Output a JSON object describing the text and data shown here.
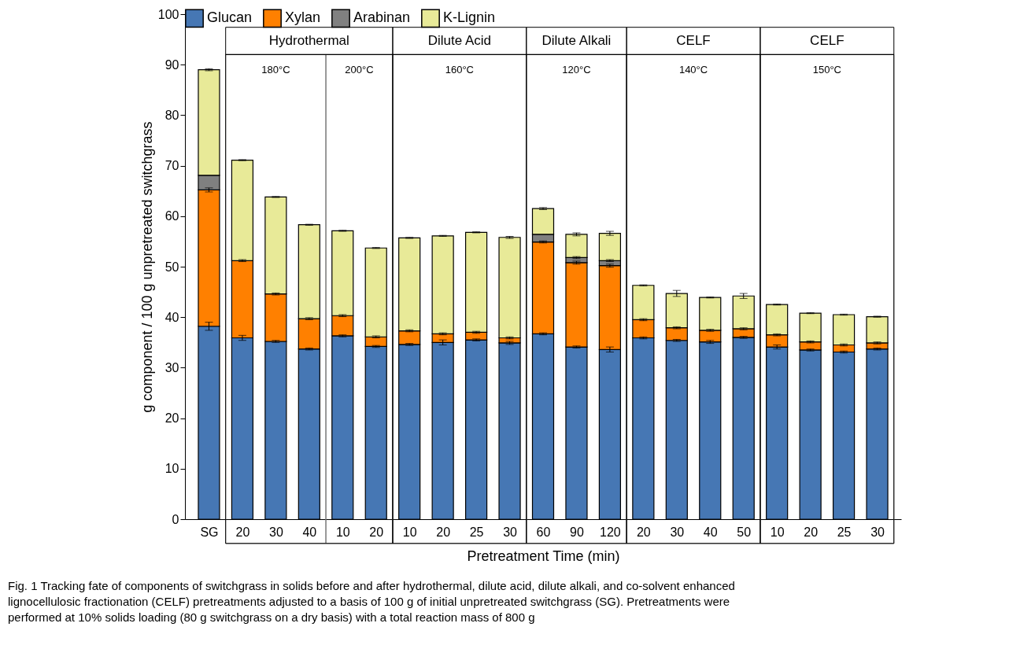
{
  "chart_data": {
    "type": "bar",
    "stacked": true,
    "categories": [
      "SG",
      "20",
      "30",
      "40",
      "10",
      "20",
      "10",
      "20",
      "25",
      "30",
      "60",
      "90",
      "120",
      "20",
      "30",
      "40",
      "50",
      "10",
      "20",
      "25",
      "30"
    ],
    "series": [
      {
        "name": "Glucan",
        "color": "#4677b4",
        "values": [
          38.2,
          35.9,
          35.2,
          33.7,
          36.3,
          34.2,
          34.6,
          35.0,
          35.5,
          34.9,
          36.7,
          34.1,
          33.6,
          35.9,
          35.4,
          35.1,
          36.0,
          34.1,
          33.5,
          33.1,
          33.7
        ],
        "errors": [
          0.8,
          0.5,
          0.2,
          0.2,
          0.2,
          0.2,
          0.2,
          0.5,
          0.2,
          0.3,
          0.2,
          0.2,
          0.5,
          0.2,
          0.2,
          0.3,
          0.2,
          0.4,
          0.2,
          0.2,
          0.2
        ]
      },
      {
        "name": "Xylan",
        "color": "#ff8000",
        "values": [
          27.0,
          15.3,
          9.4,
          6.0,
          4.0,
          1.9,
          2.7,
          1.7,
          1.5,
          1.0,
          18.2,
          16.7,
          16.6,
          3.6,
          2.5,
          2.3,
          1.7,
          2.4,
          1.6,
          1.4,
          1.2
        ],
        "errors": [
          0.4,
          0.2,
          0.2,
          0.2,
          0.2,
          0.2,
          0.2,
          0.2,
          0.2,
          0.2,
          0.2,
          0.3,
          0.3,
          0.2,
          0.2,
          0.2,
          0.2,
          0.2,
          0.2,
          0.2,
          0.2
        ]
      },
      {
        "name": "Arabinan",
        "color": "#808080",
        "values": [
          2.9,
          null,
          null,
          null,
          null,
          null,
          null,
          null,
          null,
          null,
          1.5,
          1.0,
          1.0,
          null,
          null,
          null,
          null,
          null,
          null,
          null,
          null
        ],
        "errors": [
          null,
          null,
          null,
          null,
          null,
          null,
          null,
          null,
          null,
          null,
          null,
          0.2,
          0.2,
          null,
          null,
          null,
          null,
          null,
          null,
          null,
          null
        ]
      },
      {
        "name": "K-Lignin",
        "color": "#e8ea98",
        "values": [
          20.9,
          19.9,
          19.2,
          18.6,
          16.8,
          17.6,
          18.4,
          19.4,
          19.8,
          19.9,
          5.1,
          4.6,
          5.4,
          6.8,
          6.8,
          6.5,
          6.5,
          6.0,
          5.7,
          6.0,
          5.2
        ],
        "errors": [
          0.2,
          0.1,
          0.1,
          0.1,
          0.1,
          0.1,
          0.1,
          0.1,
          0.1,
          0.2,
          0.2,
          0.3,
          0.4,
          0.1,
          0.6,
          0.1,
          0.5,
          0.1,
          0.1,
          0.1,
          0.1
        ]
      }
    ],
    "ylabel": "g component / 100 g unpretreated switchgrass",
    "xlabel": "Pretreatment Time (min)",
    "ylim": [
      0,
      100
    ],
    "yticks": [
      0,
      10,
      20,
      30,
      40,
      50,
      60,
      70,
      80,
      90,
      100
    ],
    "legend": "top",
    "annotations": [
      "Hydrothermal",
      "Dilute Acid",
      "Dilute Alkali",
      "CELF",
      "CELF",
      "180°C",
      "200°C",
      "160°C",
      "120°C",
      "140°C",
      "150°C",
      "Fig. 1  Tracking fate of components of switchgrass in solids before and after hydrothermal, dilute acid, dilute alkali, and co-solvent enhanced\nlignocellulosic fractionation (CELF) pretreatments adjusted to a basis of 100 g of initial unpretreated switchgrass (SG). Pretreatments were\nperformed at 10% solids loading (80 g switchgrass on a dry basis) with a total reaction mass of 800 g"
    ]
  }
}
